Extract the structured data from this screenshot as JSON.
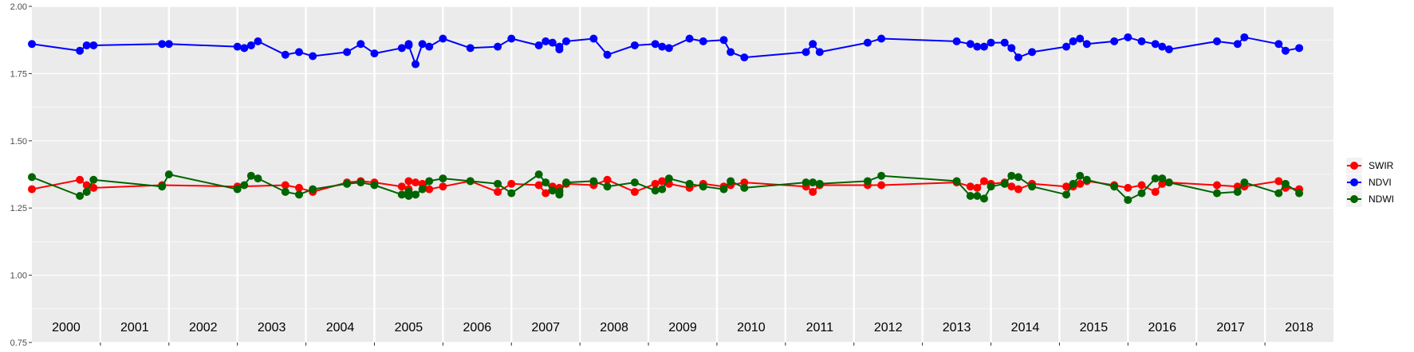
{
  "chart_data": {
    "type": "line",
    "title": "",
    "xlabel": "",
    "ylabel": "",
    "ylim": [
      0.75,
      2.0
    ],
    "xlim": [
      2000.0,
      2019.0
    ],
    "y_ticks": [
      "0.75",
      "1.00",
      "1.25",
      "1.50",
      "1.75",
      "2.00"
    ],
    "y_tick_values": [
      0.75,
      1.0,
      1.25,
      1.5,
      1.75,
      2.0
    ],
    "year_labels": [
      "2000",
      "2001",
      "2002",
      "2003",
      "2004",
      "2005",
      "2006",
      "2007",
      "2008",
      "2009",
      "2010",
      "2011",
      "2012",
      "2013",
      "2014",
      "2015",
      "2016",
      "2017",
      "2018"
    ],
    "grid": true,
    "legend_position": "right",
    "series": [
      {
        "name": "SWIR",
        "color": "#ff0000",
        "x": [
          2000.0,
          2000.7,
          2000.8,
          2000.9,
          2001.9,
          2003.0,
          2003.7,
          2003.9,
          2004.1,
          2004.6,
          2004.8,
          2005.0,
          2005.4,
          2005.5,
          2005.5,
          2005.6,
          2005.7,
          2005.8,
          2006.0,
          2006.4,
          2006.8,
          2007.0,
          2007.4,
          2007.5,
          2007.6,
          2007.7,
          2007.7,
          2007.8,
          2008.2,
          2008.4,
          2008.8,
          2009.1,
          2009.2,
          2009.3,
          2009.6,
          2009.8,
          2010.1,
          2010.2,
          2010.4,
          2011.3,
          2011.4,
          2011.5,
          2012.2,
          2012.4,
          2013.5,
          2013.7,
          2013.8,
          2013.9,
          2014.0,
          2014.2,
          2014.3,
          2014.4,
          2014.6,
          2015.1,
          2015.2,
          2015.3,
          2015.4,
          2015.8,
          2016.0,
          2016.2,
          2016.4,
          2016.5,
          2016.6,
          2017.3,
          2017.6,
          2017.7,
          2018.2,
          2018.3,
          2018.5
        ],
        "values": [
          1.32,
          1.355,
          1.335,
          1.325,
          1.335,
          1.33,
          1.335,
          1.325,
          1.31,
          1.345,
          1.35,
          1.345,
          1.33,
          1.32,
          1.35,
          1.345,
          1.34,
          1.32,
          1.33,
          1.35,
          1.31,
          1.34,
          1.335,
          1.305,
          1.33,
          1.325,
          1.315,
          1.34,
          1.335,
          1.355,
          1.31,
          1.34,
          1.35,
          1.34,
          1.325,
          1.34,
          1.33,
          1.335,
          1.345,
          1.33,
          1.31,
          1.335,
          1.335,
          1.335,
          1.345,
          1.33,
          1.325,
          1.35,
          1.34,
          1.345,
          1.33,
          1.32,
          1.34,
          1.33,
          1.33,
          1.34,
          1.35,
          1.335,
          1.325,
          1.335,
          1.31,
          1.34,
          1.345,
          1.335,
          1.33,
          1.33,
          1.35,
          1.325,
          1.32
        ]
      },
      {
        "name": "NDVI",
        "color": "#0000ff",
        "x": [
          2000.0,
          2000.7,
          2000.8,
          2000.9,
          2001.9,
          2002.0,
          2003.0,
          2003.1,
          2003.2,
          2003.3,
          2003.7,
          2003.9,
          2004.1,
          2004.6,
          2004.8,
          2005.0,
          2005.4,
          2005.5,
          2005.5,
          2005.6,
          2005.7,
          2005.8,
          2006.0,
          2006.4,
          2006.8,
          2007.0,
          2007.4,
          2007.5,
          2007.6,
          2007.7,
          2007.7,
          2007.8,
          2008.2,
          2008.4,
          2008.8,
          2009.1,
          2009.2,
          2009.3,
          2009.6,
          2009.8,
          2010.1,
          2010.2,
          2010.4,
          2011.3,
          2011.4,
          2011.5,
          2012.2,
          2012.4,
          2013.5,
          2013.7,
          2013.8,
          2013.9,
          2014.0,
          2014.2,
          2014.3,
          2014.4,
          2014.6,
          2015.1,
          2015.2,
          2015.3,
          2015.4,
          2015.8,
          2016.0,
          2016.2,
          2016.4,
          2016.5,
          2016.6,
          2017.3,
          2017.6,
          2017.7,
          2018.2,
          2018.3,
          2018.5
        ],
        "values": [
          1.86,
          1.835,
          1.855,
          1.855,
          1.86,
          1.86,
          1.85,
          1.845,
          1.855,
          1.87,
          1.82,
          1.83,
          1.815,
          1.83,
          1.86,
          1.825,
          1.845,
          1.86,
          1.855,
          1.785,
          1.86,
          1.85,
          1.88,
          1.845,
          1.85,
          1.88,
          1.855,
          1.87,
          1.865,
          1.84,
          1.85,
          1.87,
          1.88,
          1.82,
          1.855,
          1.86,
          1.85,
          1.845,
          1.88,
          1.87,
          1.875,
          1.83,
          1.81,
          1.83,
          1.86,
          1.83,
          1.865,
          1.88,
          1.87,
          1.86,
          1.85,
          1.85,
          1.865,
          1.865,
          1.845,
          1.81,
          1.83,
          1.85,
          1.87,
          1.88,
          1.86,
          1.87,
          1.885,
          1.87,
          1.86,
          1.85,
          1.84,
          1.87,
          1.86,
          1.885,
          1.86,
          1.835,
          1.845
        ]
      },
      {
        "name": "NDWI",
        "color": "#006400",
        "x": [
          2000.0,
          2000.7,
          2000.8,
          2000.9,
          2001.9,
          2002.0,
          2003.0,
          2003.1,
          2003.2,
          2003.3,
          2003.7,
          2003.9,
          2004.1,
          2004.6,
          2004.8,
          2005.0,
          2005.4,
          2005.5,
          2005.5,
          2005.6,
          2005.7,
          2005.8,
          2006.0,
          2006.4,
          2006.8,
          2007.0,
          2007.4,
          2007.5,
          2007.6,
          2007.7,
          2007.7,
          2007.8,
          2008.2,
          2008.4,
          2008.8,
          2009.1,
          2009.2,
          2009.3,
          2009.6,
          2009.8,
          2010.1,
          2010.2,
          2010.4,
          2011.3,
          2011.4,
          2011.5,
          2012.2,
          2012.4,
          2013.5,
          2013.7,
          2013.8,
          2013.9,
          2014.0,
          2014.2,
          2014.3,
          2014.4,
          2014.6,
          2015.1,
          2015.2,
          2015.3,
          2015.4,
          2015.8,
          2016.0,
          2016.2,
          2016.4,
          2016.5,
          2016.6,
          2017.3,
          2017.6,
          2017.7,
          2018.2,
          2018.3,
          2018.5
        ],
        "values": [
          1.365,
          1.295,
          1.31,
          1.355,
          1.33,
          1.375,
          1.32,
          1.335,
          1.37,
          1.36,
          1.31,
          1.3,
          1.32,
          1.34,
          1.345,
          1.335,
          1.3,
          1.31,
          1.295,
          1.3,
          1.32,
          1.35,
          1.36,
          1.35,
          1.34,
          1.305,
          1.375,
          1.345,
          1.315,
          1.3,
          1.31,
          1.345,
          1.35,
          1.33,
          1.345,
          1.315,
          1.32,
          1.36,
          1.34,
          1.33,
          1.32,
          1.35,
          1.325,
          1.345,
          1.345,
          1.34,
          1.35,
          1.37,
          1.35,
          1.295,
          1.295,
          1.285,
          1.33,
          1.34,
          1.37,
          1.365,
          1.33,
          1.3,
          1.34,
          1.37,
          1.355,
          1.33,
          1.28,
          1.305,
          1.36,
          1.36,
          1.345,
          1.305,
          1.31,
          1.345,
          1.305,
          1.34,
          1.305
        ]
      }
    ]
  }
}
